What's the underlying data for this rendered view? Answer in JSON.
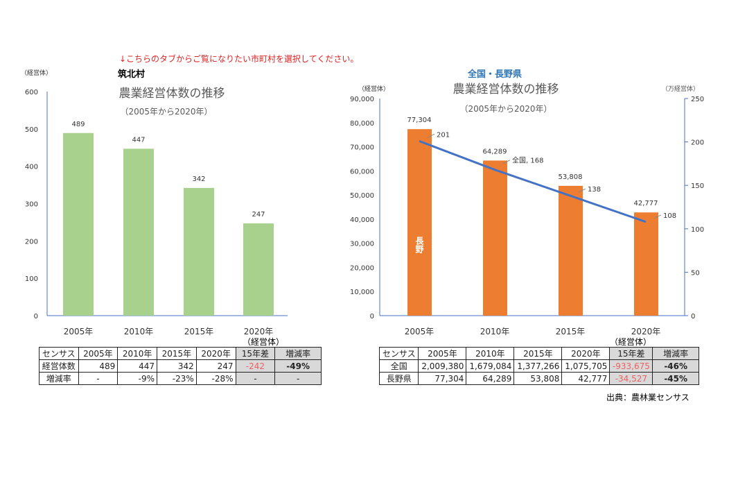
{
  "instruction": "↓こちらのタブからご覧になりたい市町村を選択してください。",
  "left_chart_heading": "筑北村",
  "right_chart_heading": "全国・長野県",
  "chart_data": [
    {
      "type": "bar",
      "title": "農業経営体数の推移",
      "subtitle": "（2005年から2020年）",
      "ylabel": "（経営体）",
      "categories": [
        "2005年",
        "2010年",
        "2015年",
        "2020年"
      ],
      "values": [
        489,
        447,
        342,
        247
      ],
      "ylim": [
        0,
        600
      ],
      "yticks": [
        "0",
        "100",
        "200",
        "300",
        "400",
        "500",
        "600"
      ],
      "color": "#a9d18e",
      "grid": false
    },
    {
      "type": "bar+line",
      "title": "農業経営体数の推移",
      "subtitle": "（2005年から2020年）",
      "ylabel": "（経営体）",
      "y2label": "（万経営体）",
      "categories": [
        "2005年",
        "2010年",
        "2015年",
        "2020年"
      ],
      "series": [
        {
          "name": "長野",
          "type": "bar",
          "axis": "left",
          "values": [
            77304,
            64289,
            53808,
            42777
          ],
          "labels": [
            "77,304",
            "64,289",
            "53,808",
            "42,777"
          ],
          "color": "#ed7d31"
        },
        {
          "name": "全国",
          "type": "line",
          "axis": "right",
          "values": [
            201,
            168,
            138,
            108
          ],
          "labels": [
            "201",
            "全国, 168",
            "138",
            "108"
          ],
          "color": "#4472c4"
        }
      ],
      "ylim": [
        0,
        90000
      ],
      "yticks": [
        "0",
        "10,000",
        "20,000",
        "30,000",
        "40,000",
        "50,000",
        "60,000",
        "70,000",
        "80,000",
        "90,000"
      ],
      "y2lim": [
        0,
        250
      ],
      "y2ticks": [
        "0",
        "50",
        "100",
        "150",
        "200",
        "250"
      ],
      "grid": false
    }
  ],
  "left_table": {
    "unit": "（経営体）",
    "header": [
      "センサス",
      "2005年",
      "2010年",
      "2015年",
      "2020年",
      "15年差",
      "増減率"
    ],
    "rows": [
      [
        "経営体数",
        "489",
        "447",
        "342",
        "247",
        "-242",
        "-49%"
      ],
      [
        "増減率",
        "-",
        "-9%",
        "-23%",
        "-28%",
        "-",
        "-"
      ]
    ]
  },
  "right_table": {
    "unit": "（経営体）",
    "header": [
      "センサス",
      "2005年",
      "2010年",
      "2015年",
      "2020年",
      "15年差",
      "増減率"
    ],
    "rows": [
      [
        "全国",
        "2,009,380",
        "1,679,084",
        "1,377,266",
        "1,075,705",
        "-933,675",
        "-46%"
      ],
      [
        "長野県",
        "77,304",
        "64,289",
        "53,808",
        "42,777",
        "-34,527",
        "-45%"
      ]
    ]
  },
  "source": "出典：農林業センサス"
}
